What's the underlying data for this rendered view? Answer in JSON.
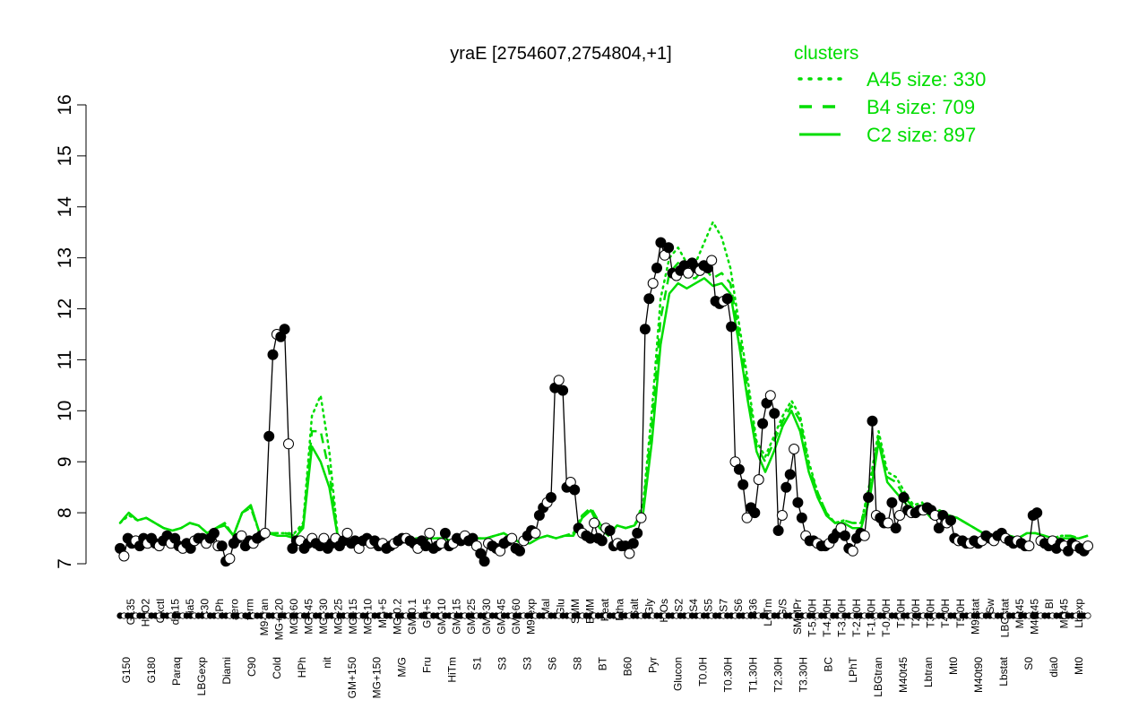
{
  "chart_data": {
    "type": "line",
    "title": "yraE [2754607,2754804,+1]",
    "xlabel": "",
    "ylabel": "",
    "ylim": [
      7,
      16
    ],
    "yticks": [
      7,
      8,
      9,
      10,
      11,
      12,
      13,
      14,
      15,
      16
    ],
    "grid": false,
    "colors": {
      "profile": "#000000",
      "clusters": "#00dd00"
    },
    "legend": {
      "title": "clusters",
      "placement": "top-right",
      "entries": [
        {
          "label": "A45 size: 330",
          "style": "dotted"
        },
        {
          "label": "B4 size: 709",
          "style": "dashed"
        },
        {
          "label": "C2 size: 897",
          "style": "solid"
        }
      ]
    },
    "x_tick_labels_top": [
      "G135",
      "H2O2",
      "Oxctl",
      "dia15",
      "dia5",
      "C30",
      "LPh",
      "aero",
      "ferm",
      "M9-tran",
      "MG+120",
      "MG+60",
      "MG+45",
      "MG+30",
      "MG+25",
      "MG+15",
      "MG+10",
      "MG+5",
      "MG-0.2",
      "GM-0.1",
      "GM+5",
      "GM+10",
      "GM+15",
      "GM+25",
      "GM+30",
      "GM+45",
      "GM+60",
      "M9-exp",
      "Mal",
      "Glu",
      "SMM",
      "BMM",
      "Heat",
      "Etha",
      "Salt",
      "Gly",
      "HiOs",
      "S2",
      "S4",
      "S5",
      "S7",
      "S6",
      "B36",
      "LoTm",
      "G/S",
      "SMMPr",
      "T-5.40H",
      "T-4.40H",
      "T-3.40H",
      "T-2.40H",
      "T-1.40H",
      "T-0.40H",
      "T1.0H",
      "T2.0H",
      "T3.0H",
      "T4.0H",
      "T5.0H",
      "M9-stat",
      "Sw",
      "LBGstat",
      "M0t45",
      "M40t45",
      "BI",
      "M0t45",
      "Lbexp"
    ],
    "x_tick_labels_bottom": [
      "G150",
      "G180",
      "Paraq",
      "LBGexp",
      "Diami",
      "C90",
      "Cold",
      "HPh",
      "nit",
      "GM+150",
      "MG+150",
      "M/G",
      "Fru",
      "HiTm",
      "S1",
      "S3",
      "S3",
      "S6",
      "S8",
      "BT",
      "B60",
      "Pyr",
      "Glucon",
      "T0.0H",
      "T0.30H",
      "T1.30H",
      "T2.30H",
      "T3.30H",
      "BC",
      "LPhT",
      "LBGtran",
      "M40t45",
      "Lbtran",
      "Mt0",
      "M40t90",
      "Lbstat",
      "S0",
      "dia0",
      "Mt0"
    ],
    "profile": [
      7.3,
      7.15,
      7.5,
      7.4,
      7.45,
      7.35,
      7.5,
      7.4,
      7.5,
      7.4,
      7.35,
      7.45,
      7.55,
      7.4,
      7.5,
      7.35,
      7.3,
      7.4,
      7.3,
      7.45,
      7.5,
      7.5,
      7.4,
      7.5,
      7.6,
      7.35,
      7.35,
      7.05,
      7.1,
      7.4,
      7.5,
      7.55,
      7.35,
      7.45,
      7.4,
      7.5,
      7.55,
      7.6,
      9.5,
      11.1,
      11.5,
      11.45,
      11.6,
      9.35,
      7.3,
      7.45,
      7.45,
      7.3,
      7.4,
      7.5,
      7.4,
      7.35,
      7.5,
      7.3,
      7.4,
      7.5,
      7.35,
      7.45,
      7.6,
      7.4,
      7.45,
      7.3,
      7.45,
      7.5,
      7.4,
      7.45,
      7.35,
      7.4,
      7.3,
      7.35,
      7.4,
      7.45,
      7.5,
      7.5,
      7.45,
      7.4,
      7.3,
      7.45,
      7.35,
      7.6,
      7.3,
      7.35,
      7.4,
      7.6,
      7.35,
      7.4,
      7.5,
      7.45,
      7.55,
      7.45,
      7.5,
      7.35,
      7.2,
      7.05,
      7.4,
      7.35,
      7.3,
      7.25,
      7.4,
      7.45,
      7.5,
      7.3,
      7.25,
      7.45,
      7.55,
      7.65,
      7.6,
      7.95,
      8.1,
      8.2,
      8.3,
      10.45,
      10.6,
      10.4,
      8.5,
      8.6,
      8.45,
      7.7,
      7.6,
      7.55,
      7.5,
      7.8,
      7.5,
      7.45,
      7.7,
      7.65,
      7.35,
      7.4,
      7.35,
      7.35,
      7.2,
      7.4,
      7.6,
      7.9,
      11.6,
      12.2,
      12.5,
      12.8,
      13.3,
      13.05,
      13.2,
      12.7,
      12.65,
      12.75,
      12.85,
      12.7,
      12.9,
      12.8,
      12.75,
      12.85,
      12.8,
      12.95,
      12.15,
      12.1,
      12.15,
      12.2,
      11.65,
      9.0,
      8.85,
      8.55,
      7.9,
      8.1,
      8.0,
      8.65,
      9.75,
      10.15,
      10.3,
      9.95,
      7.65,
      7.95,
      8.5,
      8.75,
      9.25,
      8.2,
      7.9,
      7.55,
      7.45,
      7.45,
      7.4,
      7.35,
      7.35,
      7.4,
      7.5,
      7.6,
      7.7,
      7.55,
      7.3,
      7.25,
      7.5,
      7.6,
      7.55,
      8.3,
      9.8,
      7.95,
      7.9,
      7.8,
      7.8,
      8.2,
      7.7,
      7.95,
      8.3,
      8.05,
      8.0,
      8.0,
      8.05,
      8.05,
      8.1,
      8.05,
      7.95,
      7.7,
      7.95,
      7.8,
      7.85,
      7.5,
      7.45,
      7.45,
      7.4,
      7.4,
      7.45,
      7.4,
      7.45,
      7.55,
      7.5,
      7.45,
      7.55,
      7.6,
      7.5,
      7.45,
      7.4,
      7.45,
      7.4,
      7.35,
      7.35,
      7.95,
      8.0,
      7.45,
      7.4,
      7.35,
      7.45,
      7.3,
      7.4,
      7.35,
      7.25,
      7.4,
      7.35,
      7.3,
      7.25,
      7.35
    ],
    "series": [
      {
        "name": "C2",
        "style": "solid",
        "values": [
          7.8,
          8.0,
          7.85,
          7.9,
          7.8,
          7.7,
          7.65,
          7.7,
          7.8,
          7.75,
          7.6,
          7.7,
          7.75,
          7.55,
          8.0,
          8.15,
          7.6,
          7.6,
          7.55,
          7.55,
          7.5,
          7.7,
          9.3,
          9.0,
          8.5,
          7.5,
          7.45,
          7.4,
          7.45,
          7.4,
          7.45,
          7.4,
          7.5,
          7.45,
          7.5,
          7.5,
          7.5,
          7.5,
          7.45,
          7.45,
          7.45,
          7.5,
          7.5,
          7.55,
          7.6,
          7.5,
          7.4,
          7.4,
          7.5,
          7.55,
          7.5,
          7.55,
          7.55,
          7.9,
          8.05,
          7.7,
          7.55,
          7.75,
          7.7,
          7.75,
          8.0,
          9.4,
          11.3,
          12.3,
          12.5,
          12.4,
          12.5,
          12.6,
          12.45,
          12.5,
          12.3,
          11.3,
          10.2,
          9.2,
          8.8,
          9.2,
          9.7,
          10.0,
          9.6,
          8.8,
          8.3,
          7.95,
          7.8,
          7.8,
          7.7,
          7.7,
          8.3,
          9.4,
          8.6,
          8.4,
          8.2,
          8.0,
          8.1,
          7.9,
          8.0,
          7.95,
          7.9,
          7.8,
          7.7,
          7.6,
          7.55,
          7.55,
          7.55,
          7.5,
          7.6,
          7.6,
          7.55,
          7.5,
          7.5,
          7.5,
          7.5,
          7.55
        ]
      },
      {
        "name": "B4",
        "style": "dashed",
        "values": [
          7.8,
          8.0,
          7.85,
          7.9,
          7.8,
          7.7,
          7.65,
          7.7,
          7.8,
          7.75,
          7.6,
          7.7,
          7.8,
          7.55,
          8.0,
          8.1,
          7.6,
          7.6,
          7.6,
          7.6,
          7.55,
          7.75,
          9.6,
          9.6,
          8.8,
          7.5,
          7.45,
          7.4,
          7.45,
          7.4,
          7.45,
          7.4,
          7.5,
          7.45,
          7.5,
          7.5,
          7.5,
          7.5,
          7.45,
          7.45,
          7.45,
          7.5,
          7.5,
          7.55,
          7.6,
          7.5,
          7.4,
          7.4,
          7.5,
          7.55,
          7.5,
          7.55,
          7.6,
          7.95,
          8.1,
          7.8,
          7.55,
          7.75,
          7.7,
          7.75,
          8.1,
          9.7,
          11.8,
          12.7,
          12.9,
          12.6,
          12.6,
          12.8,
          12.6,
          12.7,
          12.5,
          11.5,
          10.4,
          9.3,
          9.0,
          9.4,
          9.8,
          10.1,
          9.8,
          8.9,
          8.4,
          8.0,
          7.8,
          7.85,
          7.8,
          7.8,
          8.5,
          9.5,
          8.7,
          8.6,
          8.3,
          8.1,
          8.15,
          7.95,
          8.05,
          7.95,
          7.9,
          7.8,
          7.7,
          7.6,
          7.55,
          7.6,
          7.55,
          7.5,
          7.6,
          7.6,
          7.55,
          7.5,
          7.55,
          7.55,
          7.5,
          7.55
        ]
      },
      {
        "name": "A45",
        "style": "dotted",
        "values": [
          7.8,
          7.95,
          7.85,
          7.9,
          7.8,
          7.7,
          7.65,
          7.7,
          7.8,
          7.75,
          7.6,
          7.7,
          7.8,
          7.55,
          8.0,
          8.1,
          7.6,
          7.6,
          7.6,
          7.6,
          7.6,
          7.8,
          9.9,
          10.3,
          9.2,
          7.5,
          7.45,
          7.4,
          7.45,
          7.4,
          7.45,
          7.4,
          7.5,
          7.45,
          7.5,
          7.5,
          7.5,
          7.5,
          7.45,
          7.45,
          7.45,
          7.5,
          7.5,
          7.55,
          7.6,
          7.5,
          7.4,
          7.4,
          7.5,
          7.55,
          7.5,
          7.55,
          7.6,
          7.95,
          8.05,
          7.8,
          7.55,
          7.75,
          7.7,
          7.75,
          8.2,
          10.0,
          12.2,
          13.0,
          13.2,
          12.9,
          12.9,
          13.3,
          13.7,
          13.4,
          12.8,
          11.7,
          10.6,
          9.4,
          9.1,
          9.5,
          9.9,
          10.2,
          9.9,
          9.0,
          8.4,
          8.0,
          7.8,
          7.85,
          7.8,
          7.8,
          8.6,
          9.6,
          8.8,
          8.7,
          8.4,
          8.15,
          8.2,
          7.95,
          8.05,
          7.95,
          7.9,
          7.8,
          7.7,
          7.6,
          7.55,
          7.6,
          7.55,
          7.5,
          7.6,
          7.6,
          7.55,
          7.5,
          7.55,
          7.55,
          7.5,
          7.55
        ]
      }
    ]
  }
}
